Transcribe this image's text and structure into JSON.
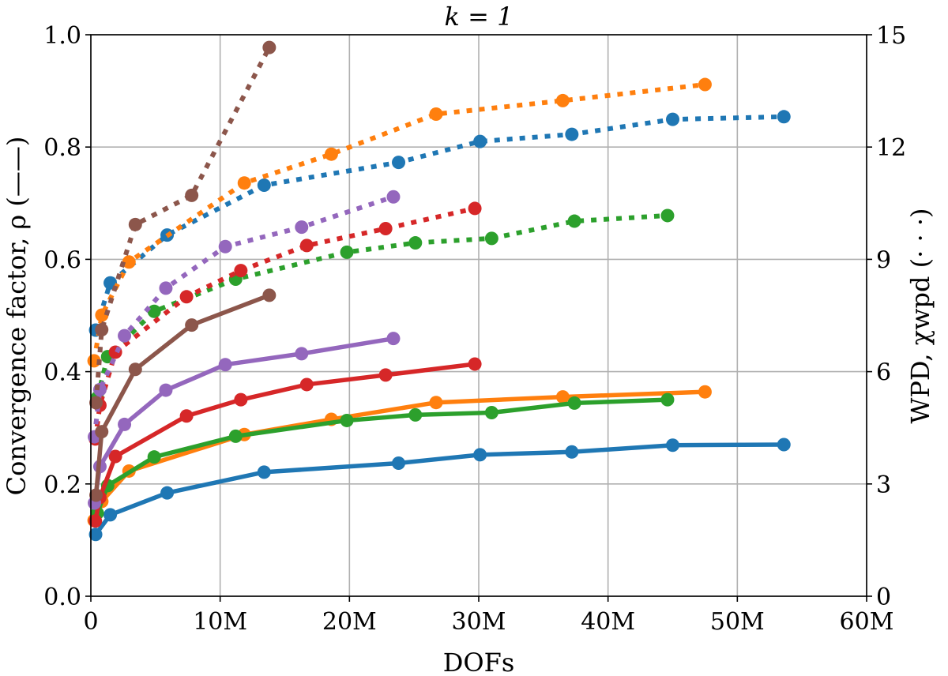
{
  "chart_data": {
    "type": "line",
    "title": "k = 1",
    "xlabel": "DOFs",
    "ylabel": "Convergence factor, ρ (——)",
    "ylabel_right": "WPD, χwpd (· · ·)",
    "xlim": [
      0,
      60000000
    ],
    "ylim": [
      0,
      1.0
    ],
    "ylim_right": [
      0,
      15
    ],
    "x_ticks": [
      "0",
      "10M",
      "20M",
      "30M",
      "40M",
      "50M",
      "60M"
    ],
    "x_tick_values": [
      0,
      10,
      20,
      30,
      40,
      50,
      60
    ],
    "x_unit": "M",
    "y_ticks": [
      "0.0",
      "0.2",
      "0.4",
      "0.6",
      "0.8",
      "1.0"
    ],
    "y_right_ticks": [
      "0",
      "3",
      "6",
      "9",
      "12",
      "15"
    ],
    "grid": true,
    "legend": "none",
    "solid_style": "convergence factor ρ (left axis)",
    "dotted_style": "WPD χwpd (right axis)",
    "series": [
      {
        "color": "#1f77b4",
        "x": [
          0.37,
          1.5,
          5.9,
          13.4,
          23.8,
          30.1,
          37.2,
          45.0,
          53.6
        ],
        "rho": [
          0.11,
          0.145,
          0.184,
          0.221,
          0.237,
          0.252,
          0.257,
          0.269,
          0.27
        ],
        "wpd": [
          7.11,
          8.37,
          9.65,
          10.98,
          11.59,
          12.15,
          12.34,
          12.74,
          12.81
        ]
      },
      {
        "color": "#ff7f0e",
        "x": [
          0.25,
          0.85,
          2.95,
          11.87,
          18.6,
          26.7,
          36.5,
          47.5
        ],
        "rho": [
          0.135,
          0.169,
          0.223,
          0.288,
          0.315,
          0.345,
          0.355,
          0.364
        ],
        "wpd": [
          6.29,
          7.51,
          8.93,
          11.04,
          11.81,
          12.88,
          13.24,
          13.67
        ]
      },
      {
        "color": "#2ca02c",
        "x": [
          0.5,
          1.3,
          4.9,
          11.2,
          19.8,
          25.1,
          31.0,
          37.4,
          44.6
        ],
        "rho": [
          0.148,
          0.197,
          0.248,
          0.285,
          0.313,
          0.323,
          0.327,
          0.344,
          0.35
        ],
        "wpd": [
          5.3,
          6.4,
          7.61,
          8.47,
          9.19,
          9.44,
          9.56,
          10.02,
          10.17
        ]
      },
      {
        "color": "#d62728",
        "x": [
          0.35,
          0.7,
          1.9,
          7.4,
          11.6,
          16.7,
          22.8,
          29.7
        ],
        "rho": [
          0.134,
          0.176,
          0.249,
          0.321,
          0.35,
          0.377,
          0.394,
          0.4135
        ],
        "wpd": [
          4.2,
          5.1,
          6.52,
          8.0,
          8.7,
          9.37,
          9.82,
          10.36
        ]
      },
      {
        "color": "#9467bd",
        "x": [
          0.28,
          0.7,
          2.6,
          5.8,
          10.4,
          16.3,
          23.4
        ],
        "rho": [
          0.166,
          0.231,
          0.306,
          0.367,
          0.4125,
          0.432,
          0.459
        ],
        "wpd": [
          4.26,
          5.52,
          6.96,
          8.23,
          9.34,
          9.86,
          10.67
        ]
      },
      {
        "color": "#8c564b",
        "x": [
          0.4,
          0.84,
          3.44,
          7.8,
          13.8
        ],
        "rho": [
          0.18,
          0.293,
          0.404,
          0.483,
          0.536
        ],
        "wpd": [
          5.17,
          7.12,
          9.93,
          10.71,
          14.66
        ]
      }
    ]
  }
}
